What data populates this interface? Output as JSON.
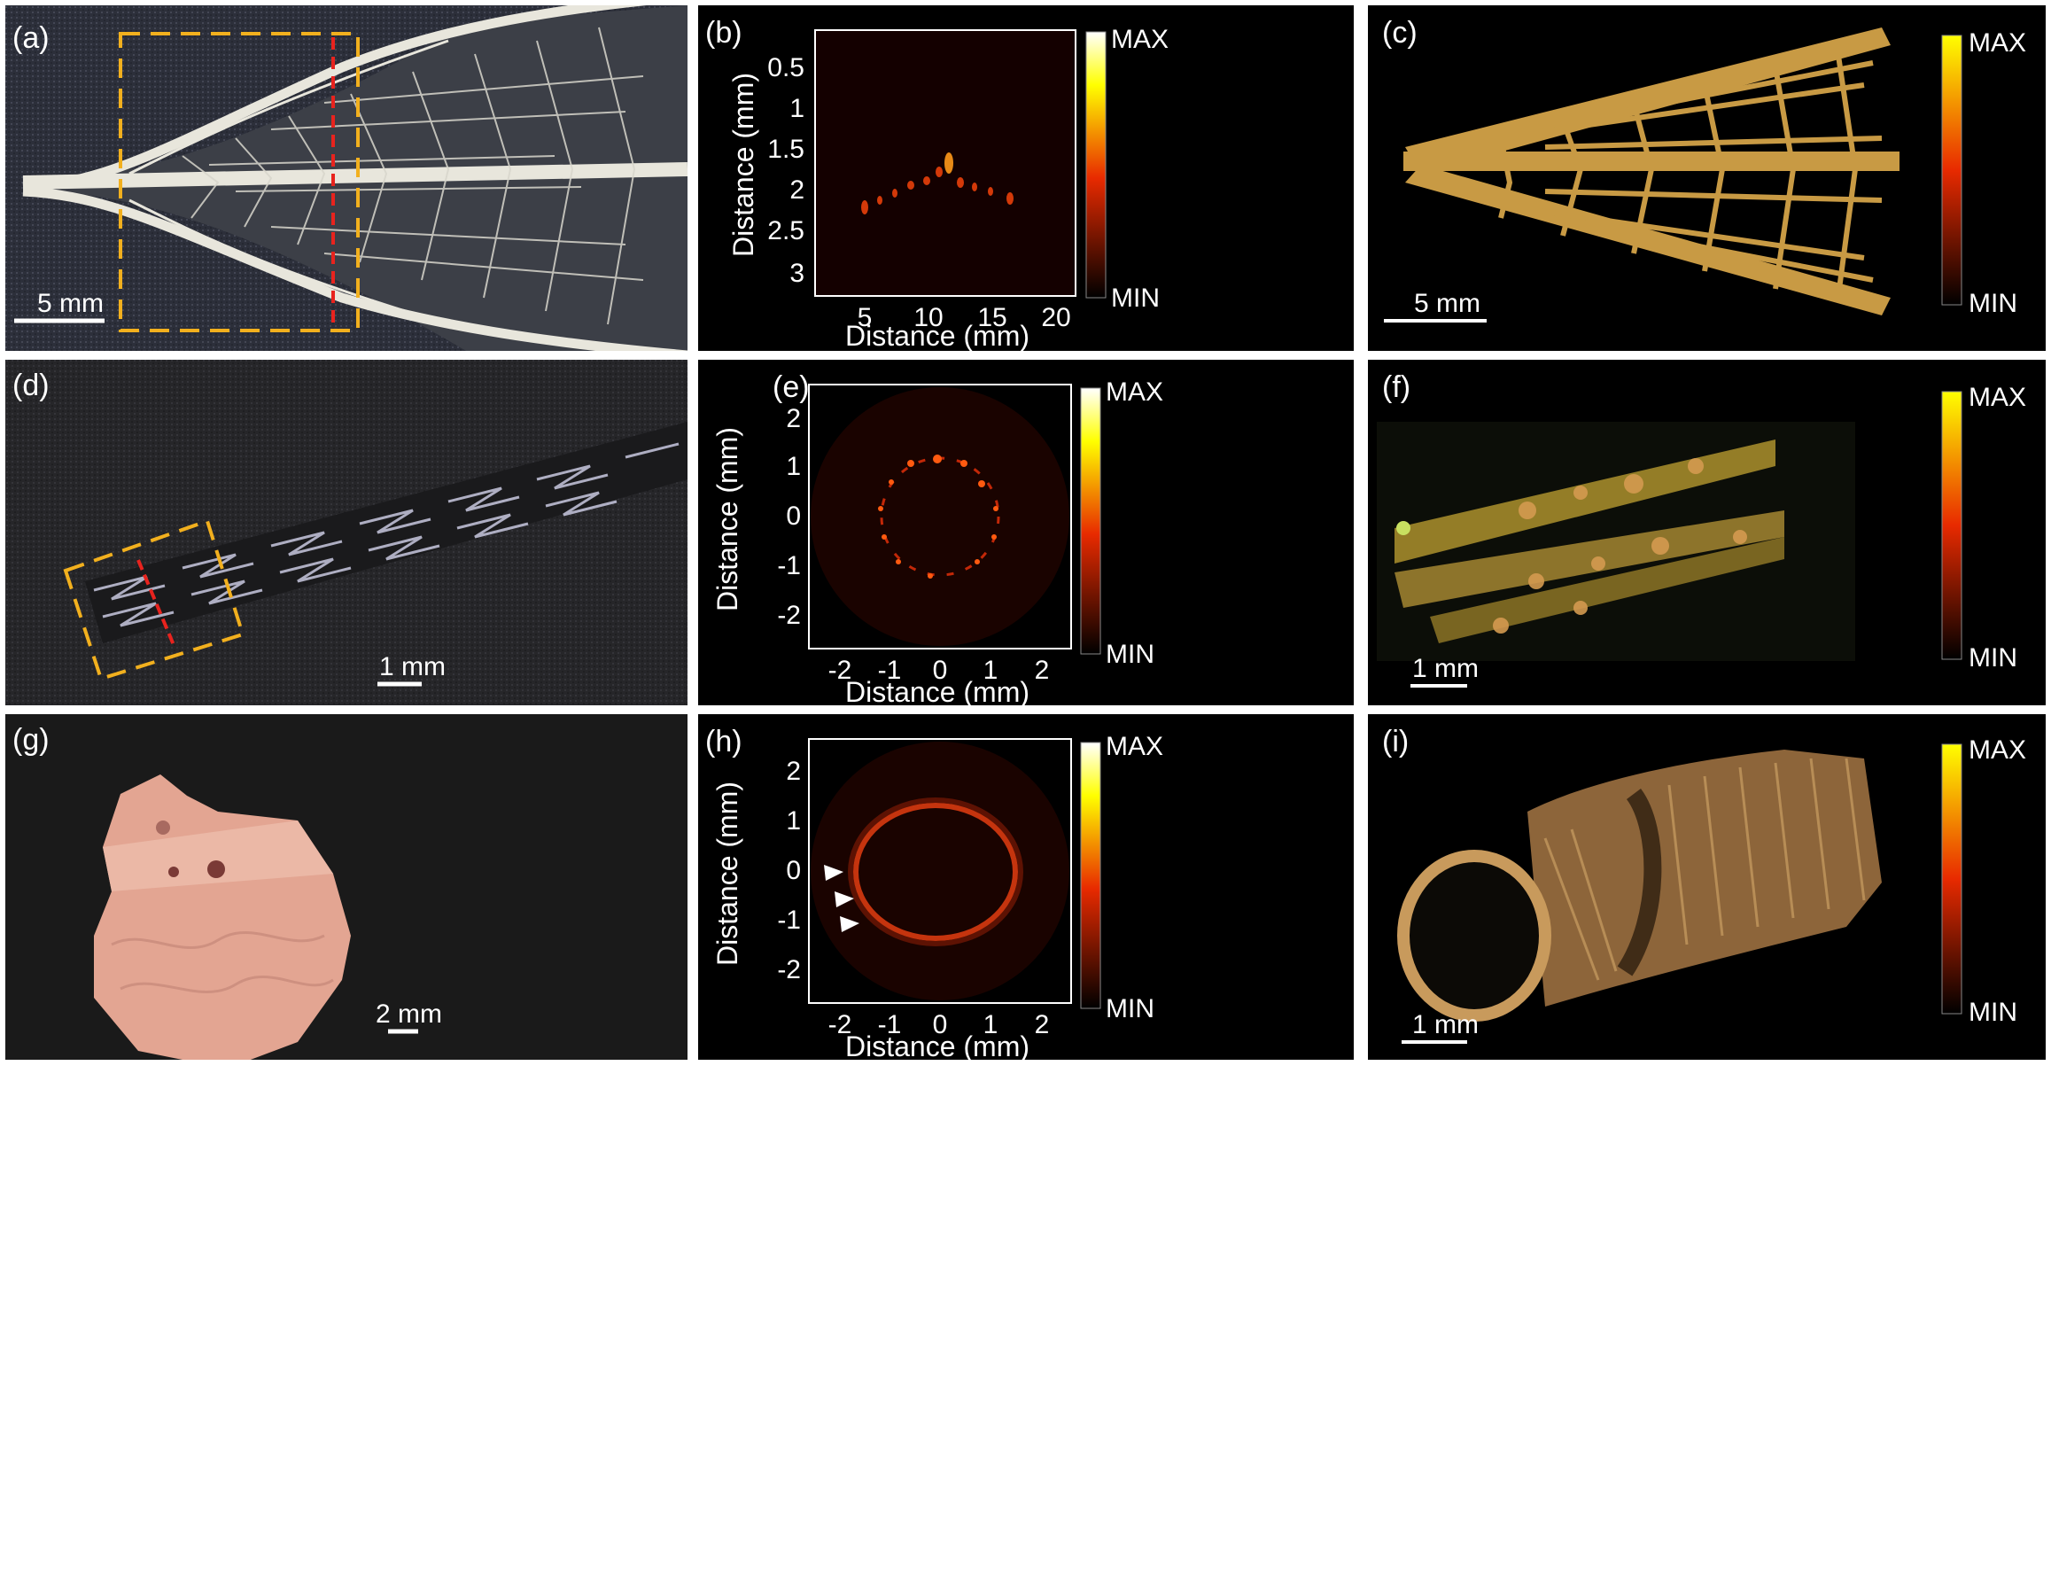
{
  "figure": {
    "panels": {
      "a": {
        "label": "(a)",
        "scale_bar": "5 mm"
      },
      "b": {
        "label": "(b)",
        "xlabel": "Distance (mm)",
        "ylabel": "Distance (mm)",
        "xticks": [
          "5",
          "10",
          "15",
          "20"
        ],
        "yticks": [
          "0.5",
          "1",
          "1.5",
          "2",
          "2.5",
          "3"
        ],
        "colorbar_max": "MAX",
        "colorbar_min": "MIN"
      },
      "c": {
        "label": "(c)",
        "scale_bar": "5 mm",
        "colorbar_max": "MAX",
        "colorbar_min": "MIN"
      },
      "d": {
        "label": "(d)",
        "scale_bar": "1 mm"
      },
      "e": {
        "label": "(e)",
        "xlabel": "Distance (mm)",
        "ylabel": "Distance (mm)",
        "xticks": [
          "-2",
          "-1",
          "0",
          "1",
          "2"
        ],
        "yticks": [
          "2",
          "1",
          "0",
          "-1",
          "-2"
        ],
        "colorbar_max": "MAX",
        "colorbar_min": "MIN"
      },
      "f": {
        "label": "(f)",
        "scale_bar": "1 mm",
        "colorbar_max": "MAX",
        "colorbar_min": "MIN"
      },
      "g": {
        "label": "(g)",
        "scale_bar": "2 mm"
      },
      "h": {
        "label": "(h)",
        "xlabel": "Distance (mm)",
        "ylabel": "Distance (mm)",
        "xticks": [
          "-2",
          "-1",
          "0",
          "1",
          "2"
        ],
        "yticks": [
          "2",
          "1",
          "0",
          "-1",
          "-2"
        ],
        "colorbar_max": "MAX",
        "colorbar_min": "MIN"
      },
      "i": {
        "label": "(i)",
        "scale_bar": "1 mm",
        "colorbar_max": "MAX",
        "colorbar_min": "MIN"
      }
    }
  },
  "colors": {
    "roi_box": "#f2b01e",
    "cross_section_line": "#e8231e",
    "hot_low": "#000000",
    "hot_mid": "#e82a00",
    "hot_high": "#ffff00",
    "hot_top": "#ffffff"
  }
}
